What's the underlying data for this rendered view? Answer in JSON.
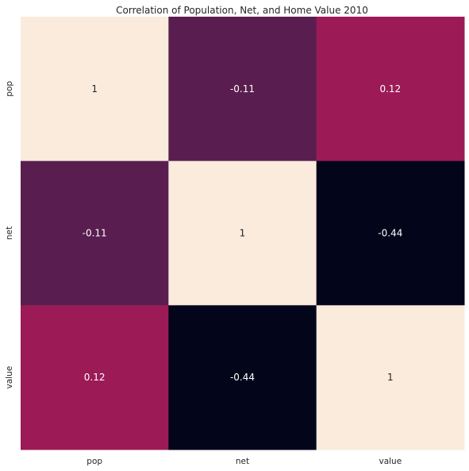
{
  "chart_data": {
    "type": "heatmap",
    "title": "Correlation of Population, Net, and Home Value 2010",
    "x_categories": [
      "pop",
      "net",
      "value"
    ],
    "y_categories": [
      "pop",
      "net",
      "value"
    ],
    "values": [
      [
        1,
        -0.11,
        0.12
      ],
      [
        -0.11,
        1,
        -0.44
      ],
      [
        0.12,
        -0.44,
        1
      ]
    ],
    "value_labels": [
      [
        "1",
        "-0.11",
        "0.12"
      ],
      [
        "-0.11",
        "1",
        "-0.44"
      ],
      [
        "0.12",
        "-0.44",
        "1"
      ]
    ],
    "colorbar": false,
    "colors": {
      "1": "#faebdd",
      "0.12": "#9c1b57",
      "-0.11": "#591e4f",
      "-0.44": "#03051a",
      "light_text": "#ffffff",
      "dark_text": "#262626"
    }
  }
}
